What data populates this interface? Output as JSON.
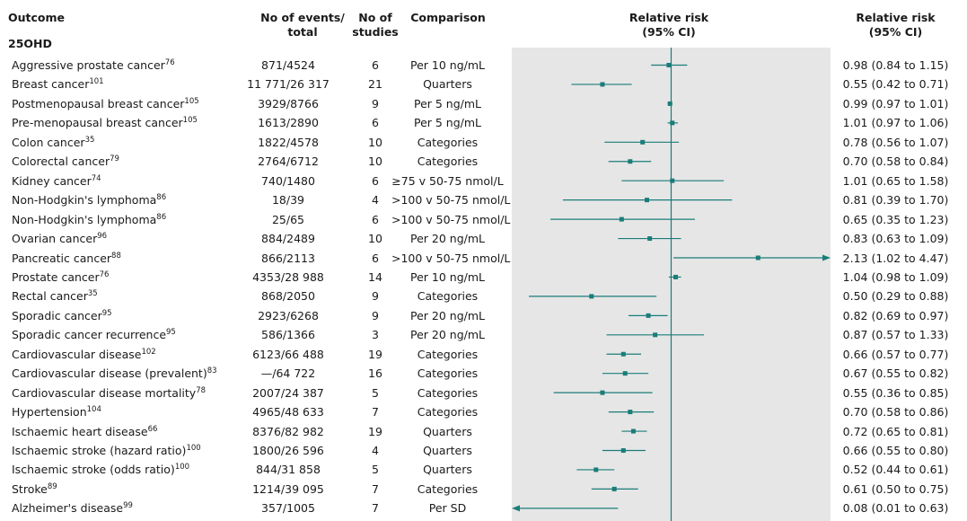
{
  "header": {
    "outcome": "Outcome",
    "events_line1": "No of events/",
    "events_line2": "total",
    "studies_line1": "No of",
    "studies_line2": "studies",
    "comparison": "Comparison",
    "plot_line1": "Relative risk",
    "plot_line2": "(95% CI)",
    "rr_line1": "Relative risk",
    "rr_line2": "(95% CI)"
  },
  "section": "25OHD",
  "colors": {
    "marker": "#1a7d7a",
    "plot_bg": "#e6e6e6",
    "ref_line": "#1a7d7a"
  },
  "rows": [
    {
      "outcome": "Aggressive prostate cancer",
      "ref": "76",
      "events": "871/4524",
      "studies": "6",
      "comparison": "Per 10 ng/mL",
      "rr_text": "0.98 (0.84 to 1.15)",
      "rr": 0.98,
      "lo": 0.84,
      "hi": 1.15
    },
    {
      "outcome": "Breast cancer",
      "ref": "101",
      "events": "11 771/26 317",
      "studies": "21",
      "comparison": "Quarters",
      "rr_text": "0.55 (0.42 to 0.71)",
      "rr": 0.55,
      "lo": 0.42,
      "hi": 0.71
    },
    {
      "outcome": "Postmenopausal breast cancer",
      "ref": "105",
      "events": "3929/8766",
      "studies": "9",
      "comparison": "Per 5 ng/mL",
      "rr_text": "0.99 (0.97 to 1.01)",
      "rr": 0.99,
      "lo": 0.97,
      "hi": 1.01
    },
    {
      "outcome": "Pre-menopausal breast cancer",
      "ref": "105",
      "events": "1613/2890",
      "studies": "6",
      "comparison": "Per 5 ng/mL",
      "rr_text": "1.01 (0.97 to 1.06)",
      "rr": 1.01,
      "lo": 0.97,
      "hi": 1.06
    },
    {
      "outcome": "Colon cancer",
      "ref": "35",
      "events": "1822/4578",
      "studies": "10",
      "comparison": "Categories",
      "rr_text": "0.78 (0.56 to 1.07)",
      "rr": 0.78,
      "lo": 0.56,
      "hi": 1.07
    },
    {
      "outcome": "Colorectal cancer",
      "ref": "79",
      "events": "2764/6712",
      "studies": "10",
      "comparison": "Categories",
      "rr_text": "0.70 (0.58 to 0.84)",
      "rr": 0.7,
      "lo": 0.58,
      "hi": 0.84
    },
    {
      "outcome": "Kidney cancer",
      "ref": "74",
      "events": "740/1480",
      "studies": "6",
      "comparison": "≥75 v 50-75 nmol/L",
      "rr_text": "1.01 (0.65 to 1.58)",
      "rr": 1.01,
      "lo": 0.65,
      "hi": 1.58
    },
    {
      "outcome": "Non-Hodgkin's lymphoma",
      "ref": "86",
      "events": "18/39",
      "studies": "4",
      "comparison": ">100 v 50-75 nmol/L",
      "rr_text": "0.81 (0.39 to 1.70)",
      "rr": 0.81,
      "lo": 0.39,
      "hi": 1.7
    },
    {
      "outcome": "Non-Hodgkin's lymphoma",
      "ref": "86",
      "events": "25/65",
      "studies": "6",
      "comparison": ">100 v 50-75 nmol/L",
      "rr_text": "0.65 (0.35 to 1.23)",
      "rr": 0.65,
      "lo": 0.35,
      "hi": 1.23
    },
    {
      "outcome": "Ovarian cancer",
      "ref": "96",
      "events": "884/2489",
      "studies": "10",
      "comparison": "Per 20 ng/mL",
      "rr_text": "0.83 (0.63 to 1.09)",
      "rr": 0.83,
      "lo": 0.63,
      "hi": 1.09
    },
    {
      "outcome": "Pancreatic cancer",
      "ref": "88",
      "events": "866/2113",
      "studies": "6",
      "comparison": ">100 v 50-75 nmol/L",
      "rr_text": "2.13 (1.02 to 4.47)",
      "rr": 2.13,
      "lo": 1.02,
      "hi": 4.47,
      "arrow_right": true
    },
    {
      "outcome": "Prostate cancer",
      "ref": "76",
      "events": "4353/28 988",
      "studies": "14",
      "comparison": "Per 10 ng/mL",
      "rr_text": "1.04 (0.98 to 1.09)",
      "rr": 1.04,
      "lo": 0.98,
      "hi": 1.09
    },
    {
      "outcome": "Rectal cancer",
      "ref": "35",
      "events": "868/2050",
      "studies": "9",
      "comparison": "Categories",
      "rr_text": "0.50 (0.29 to 0.88)",
      "rr": 0.5,
      "lo": 0.29,
      "hi": 0.88
    },
    {
      "outcome": "Sporadic cancer",
      "ref": "95",
      "events": "2923/6268",
      "studies": "9",
      "comparison": "Per 20 ng/mL",
      "rr_text": "0.82 (0.69 to 0.97)",
      "rr": 0.82,
      "lo": 0.69,
      "hi": 0.97
    },
    {
      "outcome": "Sporadic cancer recurrence",
      "ref": "95",
      "events": "586/1366",
      "studies": "3",
      "comparison": "Per 20 ng/mL",
      "rr_text": "0.87 (0.57 to 1.33)",
      "rr": 0.87,
      "lo": 0.57,
      "hi": 1.33
    },
    {
      "outcome": "Cardiovascular disease",
      "ref": "102",
      "events": "6123/66 488",
      "studies": "19",
      "comparison": "Categories",
      "rr_text": "0.66 (0.57 to 0.77)",
      "rr": 0.66,
      "lo": 0.57,
      "hi": 0.77
    },
    {
      "outcome": "Cardiovascular disease (prevalent)",
      "ref": "83",
      "events": "—/64 722",
      "studies": "16",
      "comparison": "Categories",
      "rr_text": "0.67 (0.55 to 0.82)",
      "rr": 0.67,
      "lo": 0.55,
      "hi": 0.82
    },
    {
      "outcome": "Cardiovascular disease mortality",
      "ref": "78",
      "events": "2007/24 387",
      "studies": "5",
      "comparison": "Categories",
      "rr_text": "0.55 (0.36 to 0.85)",
      "rr": 0.55,
      "lo": 0.36,
      "hi": 0.85
    },
    {
      "outcome": "Hypertension",
      "ref": "104",
      "events": "4965/48 633",
      "studies": "7",
      "comparison": "Categories",
      "rr_text": "0.70 (0.58 to 0.86)",
      "rr": 0.7,
      "lo": 0.58,
      "hi": 0.86
    },
    {
      "outcome": "Ischaemic heart disease",
      "ref": "66",
      "events": "8376/82 982",
      "studies": "19",
      "comparison": "Quarters",
      "rr_text": "0.72 (0.65 to 0.81)",
      "rr": 0.72,
      "lo": 0.65,
      "hi": 0.81
    },
    {
      "outcome": "Ischaemic stroke (hazard ratio)",
      "ref": "100",
      "events": "1800/26 596",
      "studies": "4",
      "comparison": "Quarters",
      "rr_text": "0.66 (0.55 to 0.80)",
      "rr": 0.66,
      "lo": 0.55,
      "hi": 0.8
    },
    {
      "outcome": "Ischaemic stroke (odds ratio)",
      "ref": "100",
      "events": "844/31 858",
      "studies": "5",
      "comparison": "Quarters",
      "rr_text": "0.52 (0.44 to 0.61)",
      "rr": 0.52,
      "lo": 0.44,
      "hi": 0.61
    },
    {
      "outcome": "Stroke",
      "ref": "89",
      "events": "1214/39 095",
      "studies": "7",
      "comparison": "Categories",
      "rr_text": "0.61 (0.50 to 0.75)",
      "rr": 0.61,
      "lo": 0.5,
      "hi": 0.75
    },
    {
      "outcome": "Alzheimer's disease",
      "ref": "99",
      "events": "357/1005",
      "studies": "7",
      "comparison": "Per SD",
      "rr_text": "0.08 (0.01 to 0.63)",
      "rr": 0.08,
      "lo": 0.01,
      "hi": 0.63,
      "arrow_left": true
    }
  ],
  "chart_data": {
    "type": "forest",
    "title": "Relative risk (95% CI)",
    "xscale": "log",
    "xlim": [
      0.25,
      4.0
    ],
    "reference_line": 1.0,
    "section": "25OHD",
    "categories": [
      "Aggressive prostate cancer",
      "Breast cancer",
      "Postmenopausal breast cancer",
      "Pre-menopausal breast cancer",
      "Colon cancer",
      "Colorectal cancer",
      "Kidney cancer",
      "Non-Hodgkin's lymphoma",
      "Non-Hodgkin's lymphoma",
      "Ovarian cancer",
      "Pancreatic cancer",
      "Prostate cancer",
      "Rectal cancer",
      "Sporadic cancer",
      "Sporadic cancer recurrence",
      "Cardiovascular disease",
      "Cardiovascular disease (prevalent)",
      "Cardiovascular disease mortality",
      "Hypertension",
      "Ischaemic heart disease",
      "Ischaemic stroke (hazard ratio)",
      "Ischaemic stroke (odds ratio)",
      "Stroke",
      "Alzheimer's disease"
    ],
    "series": [
      {
        "name": "RR",
        "values": [
          0.98,
          0.55,
          0.99,
          1.01,
          0.78,
          0.7,
          1.01,
          0.81,
          0.65,
          0.83,
          2.13,
          1.04,
          0.5,
          0.82,
          0.87,
          0.66,
          0.67,
          0.55,
          0.7,
          0.72,
          0.66,
          0.52,
          0.61,
          0.08
        ]
      },
      {
        "name": "CI lower",
        "values": [
          0.84,
          0.42,
          0.97,
          0.97,
          0.56,
          0.58,
          0.65,
          0.39,
          0.35,
          0.63,
          1.02,
          0.98,
          0.29,
          0.69,
          0.57,
          0.57,
          0.55,
          0.36,
          0.58,
          0.65,
          0.55,
          0.44,
          0.5,
          0.01
        ]
      },
      {
        "name": "CI upper",
        "values": [
          1.15,
          0.71,
          1.01,
          1.06,
          1.07,
          0.84,
          1.58,
          1.7,
          1.23,
          1.09,
          4.47,
          1.09,
          0.88,
          0.97,
          1.33,
          0.77,
          0.82,
          0.85,
          0.86,
          0.81,
          0.8,
          0.61,
          0.75,
          0.63
        ]
      }
    ]
  }
}
